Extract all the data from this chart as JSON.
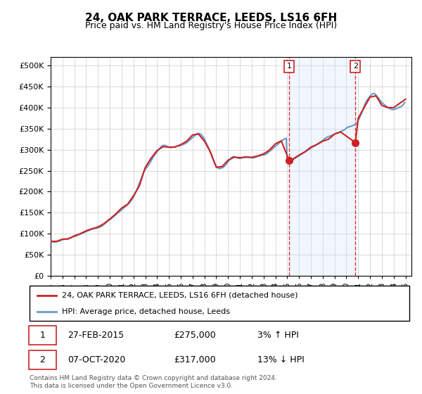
{
  "title": "24, OAK PARK TERRACE, LEEDS, LS16 6FH",
  "subtitle": "Price paid vs. HM Land Registry's House Price Index (HPI)",
  "ytick_values": [
    0,
    50000,
    100000,
    150000,
    200000,
    250000,
    300000,
    350000,
    400000,
    450000,
    500000
  ],
  "ylim": [
    0,
    520000
  ],
  "xlim_start": 1995.0,
  "xlim_end": 2025.5,
  "sale1_date": 2015.15,
  "sale1_price": 275000,
  "sale1_label": "1",
  "sale2_date": 2020.76,
  "sale2_price": 317000,
  "sale2_label": "2",
  "hpi_color": "#6699cc",
  "price_color": "#cc2222",
  "marker_color": "#cc2222",
  "vline_color": "#dd3333",
  "shade_color": "#cce0ff",
  "grid_color": "#cccccc",
  "bg_color": "#ffffff",
  "legend_line1": "24, OAK PARK TERRACE, LEEDS, LS16 6FH (detached house)",
  "legend_line2": "HPI: Average price, detached house, Leeds",
  "footer": "Contains HM Land Registry data © Crown copyright and database right 2024.\nThis data is licensed under the Open Government Licence v3.0.",
  "hpi_years": [
    1995.0,
    1995.083,
    1995.167,
    1995.25,
    1995.333,
    1995.417,
    1995.5,
    1995.583,
    1995.667,
    1995.75,
    1995.833,
    1995.917,
    1996.0,
    1996.083,
    1996.167,
    1996.25,
    1996.333,
    1996.417,
    1996.5,
    1996.583,
    1996.667,
    1996.75,
    1996.833,
    1996.917,
    1997.0,
    1997.083,
    1997.167,
    1997.25,
    1997.333,
    1997.417,
    1997.5,
    1997.583,
    1997.667,
    1997.75,
    1997.833,
    1997.917,
    1998.0,
    1998.083,
    1998.167,
    1998.25,
    1998.333,
    1998.417,
    1998.5,
    1998.583,
    1998.667,
    1998.75,
    1998.833,
    1998.917,
    1999.0,
    1999.083,
    1999.167,
    1999.25,
    1999.333,
    1999.417,
    1999.5,
    1999.583,
    1999.667,
    1999.75,
    1999.833,
    1999.917,
    2000.0,
    2000.083,
    2000.167,
    2000.25,
    2000.333,
    2000.417,
    2000.5,
    2000.583,
    2000.667,
    2000.75,
    2000.833,
    2000.917,
    2001.0,
    2001.083,
    2001.167,
    2001.25,
    2001.333,
    2001.417,
    2001.5,
    2001.583,
    2001.667,
    2001.75,
    2001.833,
    2001.917,
    2002.0,
    2002.083,
    2002.167,
    2002.25,
    2002.333,
    2002.417,
    2002.5,
    2002.583,
    2002.667,
    2002.75,
    2002.833,
    2002.917,
    2003.0,
    2003.083,
    2003.167,
    2003.25,
    2003.333,
    2003.417,
    2003.5,
    2003.583,
    2003.667,
    2003.75,
    2003.833,
    2003.917,
    2004.0,
    2004.083,
    2004.167,
    2004.25,
    2004.333,
    2004.417,
    2004.5,
    2004.583,
    2004.667,
    2004.75,
    2004.833,
    2004.917,
    2005.0,
    2005.083,
    2005.167,
    2005.25,
    2005.333,
    2005.417,
    2005.5,
    2005.583,
    2005.667,
    2005.75,
    2005.833,
    2005.917,
    2006.0,
    2006.083,
    2006.167,
    2006.25,
    2006.333,
    2006.417,
    2006.5,
    2006.583,
    2006.667,
    2006.75,
    2006.833,
    2006.917,
    2007.0,
    2007.083,
    2007.167,
    2007.25,
    2007.333,
    2007.417,
    2007.5,
    2007.583,
    2007.667,
    2007.75,
    2007.833,
    2007.917,
    2008.0,
    2008.083,
    2008.167,
    2008.25,
    2008.333,
    2008.417,
    2008.5,
    2008.583,
    2008.667,
    2008.75,
    2008.833,
    2008.917,
    2009.0,
    2009.083,
    2009.167,
    2009.25,
    2009.333,
    2009.417,
    2009.5,
    2009.583,
    2009.667,
    2009.75,
    2009.833,
    2009.917,
    2010.0,
    2010.083,
    2010.167,
    2010.25,
    2010.333,
    2010.417,
    2010.5,
    2010.583,
    2010.667,
    2010.75,
    2010.833,
    2010.917,
    2011.0,
    2011.083,
    2011.167,
    2011.25,
    2011.333,
    2011.417,
    2011.5,
    2011.583,
    2011.667,
    2011.75,
    2011.833,
    2011.917,
    2012.0,
    2012.083,
    2012.167,
    2012.25,
    2012.333,
    2012.417,
    2012.5,
    2012.583,
    2012.667,
    2012.75,
    2012.833,
    2012.917,
    2013.0,
    2013.083,
    2013.167,
    2013.25,
    2013.333,
    2013.417,
    2013.5,
    2013.583,
    2013.667,
    2013.75,
    2013.833,
    2013.917,
    2014.0,
    2014.083,
    2014.167,
    2014.25,
    2014.333,
    2014.417,
    2014.5,
    2014.583,
    2014.667,
    2014.75,
    2014.833,
    2014.917,
    2015.0,
    2015.083,
    2015.167,
    2015.25,
    2015.333,
    2015.417,
    2015.5,
    2015.583,
    2015.667,
    2015.75,
    2015.833,
    2015.917,
    2016.0,
    2016.083,
    2016.167,
    2016.25,
    2016.333,
    2016.417,
    2016.5,
    2016.583,
    2016.667,
    2016.75,
    2016.833,
    2016.917,
    2017.0,
    2017.083,
    2017.167,
    2017.25,
    2017.333,
    2017.417,
    2017.5,
    2017.583,
    2017.667,
    2017.75,
    2017.833,
    2017.917,
    2018.0,
    2018.083,
    2018.167,
    2018.25,
    2018.333,
    2018.417,
    2018.5,
    2018.583,
    2018.667,
    2018.75,
    2018.833,
    2018.917,
    2019.0,
    2019.083,
    2019.167,
    2019.25,
    2019.333,
    2019.417,
    2019.5,
    2019.583,
    2019.667,
    2019.75,
    2019.833,
    2019.917,
    2020.0,
    2020.083,
    2020.167,
    2020.25,
    2020.333,
    2020.417,
    2020.5,
    2020.583,
    2020.667,
    2020.75,
    2020.833,
    2020.917,
    2021.0,
    2021.083,
    2021.167,
    2021.25,
    2021.333,
    2021.417,
    2021.5,
    2021.583,
    2021.667,
    2021.75,
    2021.833,
    2021.917,
    2022.0,
    2022.083,
    2022.167,
    2022.25,
    2022.333,
    2022.417,
    2022.5,
    2022.583,
    2022.667,
    2022.75,
    2022.833,
    2022.917,
    2023.0,
    2023.083,
    2023.167,
    2023.25,
    2023.333,
    2023.417,
    2023.5,
    2023.583,
    2023.667,
    2023.75,
    2023.833,
    2023.917,
    2024.0,
    2024.083,
    2024.167,
    2024.25,
    2024.333,
    2024.417,
    2024.5,
    2024.583,
    2024.667,
    2024.75,
    2024.833,
    2024.917
  ],
  "hpi_values": [
    82000,
    81500,
    81000,
    80500,
    80000,
    80500,
    81000,
    81500,
    82000,
    83000,
    84000,
    85000,
    86000,
    86500,
    87000,
    87500,
    87000,
    87500,
    88000,
    89000,
    90000,
    91000,
    92000,
    93000,
    93500,
    94000,
    95000,
    96000,
    97000,
    98000,
    99000,
    100000,
    101000,
    102000,
    103000,
    104000,
    105000,
    106000,
    107000,
    108000,
    109000,
    110000,
    111000,
    111500,
    112000,
    112500,
    113000,
    113500,
    114000,
    115000,
    116000,
    117000,
    118000,
    120000,
    122000,
    124000,
    126000,
    128000,
    130000,
    132000,
    133000,
    135000,
    137000,
    139000,
    141000,
    143000,
    145000,
    147000,
    149000,
    151000,
    153000,
    155000,
    157000,
    159000,
    161000,
    163000,
    165000,
    167000,
    169000,
    171000,
    174000,
    177000,
    180000,
    183000,
    187000,
    192000,
    197000,
    202000,
    208000,
    214000,
    220000,
    226000,
    232000,
    238000,
    244000,
    250000,
    253000,
    256000,
    259000,
    262000,
    266000,
    270000,
    274000,
    278000,
    282000,
    286000,
    289000,
    292000,
    295000,
    298000,
    301000,
    304000,
    307000,
    309000,
    310000,
    310500,
    310000,
    309000,
    308000,
    307000,
    306000,
    305000,
    305000,
    305500,
    306000,
    306500,
    307000,
    307500,
    308000,
    308500,
    309000,
    309500,
    310000,
    311000,
    312000,
    313000,
    314000,
    315000,
    317000,
    319000,
    321000,
    323000,
    325000,
    327000,
    329000,
    331000,
    333000,
    335000,
    337000,
    338000,
    338500,
    338000,
    337000,
    335000,
    332000,
    329000,
    325000,
    320000,
    315000,
    310000,
    305000,
    299000,
    293000,
    287000,
    281000,
    275500,
    270000,
    265000,
    261000,
    258000,
    256000,
    255000,
    255500,
    256000,
    257000,
    258000,
    260000,
    262000,
    265000,
    268000,
    271000,
    274000,
    277000,
    280000,
    282000,
    283000,
    283500,
    283000,
    282000,
    281000,
    280000,
    279500,
    279000,
    279500,
    280000,
    281000,
    282000,
    283000,
    283500,
    283000,
    282500,
    282000,
    281500,
    281000,
    280500,
    280000,
    280500,
    281000,
    282000,
    283000,
    284000,
    285000,
    285500,
    286000,
    286500,
    287000,
    287500,
    288000,
    289000,
    290000,
    292000,
    294000,
    296000,
    298000,
    300000,
    302000,
    304000,
    306000,
    308000,
    310000,
    312000,
    314000,
    316000,
    318000,
    320000,
    322000,
    324000,
    325000,
    326000,
    327000,
    268000,
    269000,
    270500,
    272000,
    273500,
    275000,
    276500,
    278000,
    279500,
    281000,
    282500,
    284000,
    285500,
    287000,
    288500,
    290000,
    291500,
    293000,
    294500,
    296000,
    297500,
    299000,
    300500,
    302000,
    303500,
    305000,
    306500,
    308000,
    309500,
    311000,
    312500,
    314000,
    315500,
    317000,
    318500,
    320000,
    322000,
    324000,
    326000,
    328000,
    329000,
    330000,
    331000,
    332000,
    333000,
    334000,
    335000,
    336000,
    337000,
    338000,
    339000,
    340000,
    341000,
    342000,
    343000,
    344000,
    345000,
    346000,
    347500,
    349000,
    351000,
    353000,
    354000,
    354500,
    355000,
    356000,
    357000,
    358000,
    359000,
    360000,
    362000,
    365000,
    369000,
    374000,
    379000,
    385000,
    391000,
    397000,
    403000,
    409000,
    414000,
    418000,
    421000,
    424000,
    427000,
    430000,
    432000,
    433000,
    433500,
    432000,
    430000,
    427000,
    424000,
    421000,
    418000,
    415000,
    412000,
    410000,
    408000,
    406000,
    404000,
    402000,
    400000,
    399000,
    398000,
    397000,
    396000,
    395000,
    395500,
    396000,
    397000,
    398000,
    399000,
    400000,
    401000,
    402000,
    403000,
    405000,
    408000,
    412000
  ],
  "price_years": [
    1995.0,
    1995.5,
    1996.0,
    1996.5,
    1997.0,
    1997.5,
    1998.0,
    1998.5,
    1999.0,
    1999.5,
    2000.0,
    2000.5,
    2001.0,
    2001.5,
    2002.0,
    2002.5,
    2003.0,
    2003.5,
    2004.0,
    2004.5,
    2005.0,
    2005.5,
    2006.0,
    2006.5,
    2007.0,
    2007.5,
    2008.0,
    2008.5,
    2009.0,
    2009.5,
    2010.0,
    2010.5,
    2011.0,
    2011.5,
    2012.0,
    2012.5,
    2013.0,
    2013.5,
    2014.0,
    2014.5,
    2015.15,
    2015.5,
    2016.0,
    2016.5,
    2017.0,
    2017.5,
    2018.0,
    2018.5,
    2019.0,
    2019.5,
    2020.76,
    2021.0,
    2021.5,
    2022.0,
    2022.5,
    2023.0,
    2023.5,
    2024.0,
    2024.5,
    2025.0
  ],
  "price_values": [
    82000,
    82000,
    87000,
    88000,
    95000,
    100000,
    107000,
    112000,
    116000,
    124000,
    135000,
    147000,
    161000,
    170000,
    190000,
    214000,
    258000,
    280000,
    298000,
    307000,
    306000,
    306000,
    312000,
    320000,
    335000,
    337000,
    320000,
    295000,
    258000,
    260000,
    275000,
    282000,
    281000,
    282000,
    282000,
    285000,
    290000,
    299000,
    314000,
    321000,
    275000,
    278000,
    287000,
    295000,
    306000,
    312000,
    320000,
    325000,
    337000,
    342000,
    317000,
    375000,
    400000,
    425000,
    428000,
    405000,
    400000,
    400000,
    410000,
    420000
  ]
}
